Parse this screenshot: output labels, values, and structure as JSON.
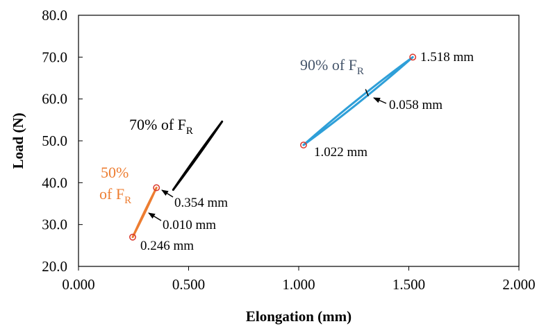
{
  "chart_data": {
    "type": "line",
    "title": "",
    "xlabel": "Elongation (mm)",
    "ylabel": "Load (N)",
    "xlim": [
      0,
      2
    ],
    "ylim": [
      20,
      80
    ],
    "x_ticks": [
      0,
      0.5,
      1,
      1.5,
      2
    ],
    "x_tick_labels": [
      "0.000",
      "0.500",
      "1.000",
      "1.500",
      "2.000"
    ],
    "y_ticks": [
      20,
      30,
      40,
      50,
      60,
      70,
      80
    ],
    "y_tick_labels": [
      "20.0",
      "30.0",
      "40.0",
      "50.0",
      "60.0",
      "70.0",
      "80.0"
    ],
    "grid": false,
    "series": [
      {
        "name": "50% of F_R",
        "label_line1": "50%",
        "label_line2_prefix": "of F",
        "label_subscript": "R",
        "color": "#ED7D31",
        "loop_start": [
          0.246,
          27.0
        ],
        "loop_end": [
          0.354,
          38.8
        ],
        "loop_bulge": 0.6,
        "markers": [
          [
            0.246,
            27.0
          ],
          [
            0.354,
            38.8
          ]
        ]
      },
      {
        "name": "70% of F_R",
        "label_prefix": "70% of F",
        "label_subscript": "R",
        "color": "#000000",
        "loop_start": [
          0.43,
          38.3
        ],
        "loop_end": [
          0.652,
          54.6
        ],
        "loop_bulge": 0.9,
        "markers": []
      },
      {
        "name": "90% of F_R",
        "label_prefix": "90% of F",
        "label_subscript": "R",
        "color": "#2E9FD8",
        "label_color": "#44546A",
        "loop_start": [
          1.022,
          49.0
        ],
        "loop_end": [
          1.518,
          70.0
        ],
        "loop_bulge": 3.0,
        "markers": [
          [
            1.022,
            49.0
          ],
          [
            1.518,
            70.0
          ]
        ]
      }
    ],
    "marker_color": "#D9362B",
    "annotations": [
      {
        "text": "0.246 mm",
        "x": 0.246,
        "y": 27.0,
        "arrow": false
      },
      {
        "text": "0.354 mm",
        "x": 0.354,
        "y": 38.8,
        "arrow": true
      },
      {
        "text": "0.010 mm",
        "x": 0.305,
        "y": 32.5,
        "arrow": true
      },
      {
        "text": "1.022 mm",
        "x": 1.022,
        "y": 49.0,
        "arrow": false
      },
      {
        "text": "1.518 mm",
        "x": 1.518,
        "y": 70.0,
        "arrow": false
      },
      {
        "text": "0.058 mm",
        "x": 1.31,
        "y": 61.5,
        "arrow": true
      }
    ]
  }
}
